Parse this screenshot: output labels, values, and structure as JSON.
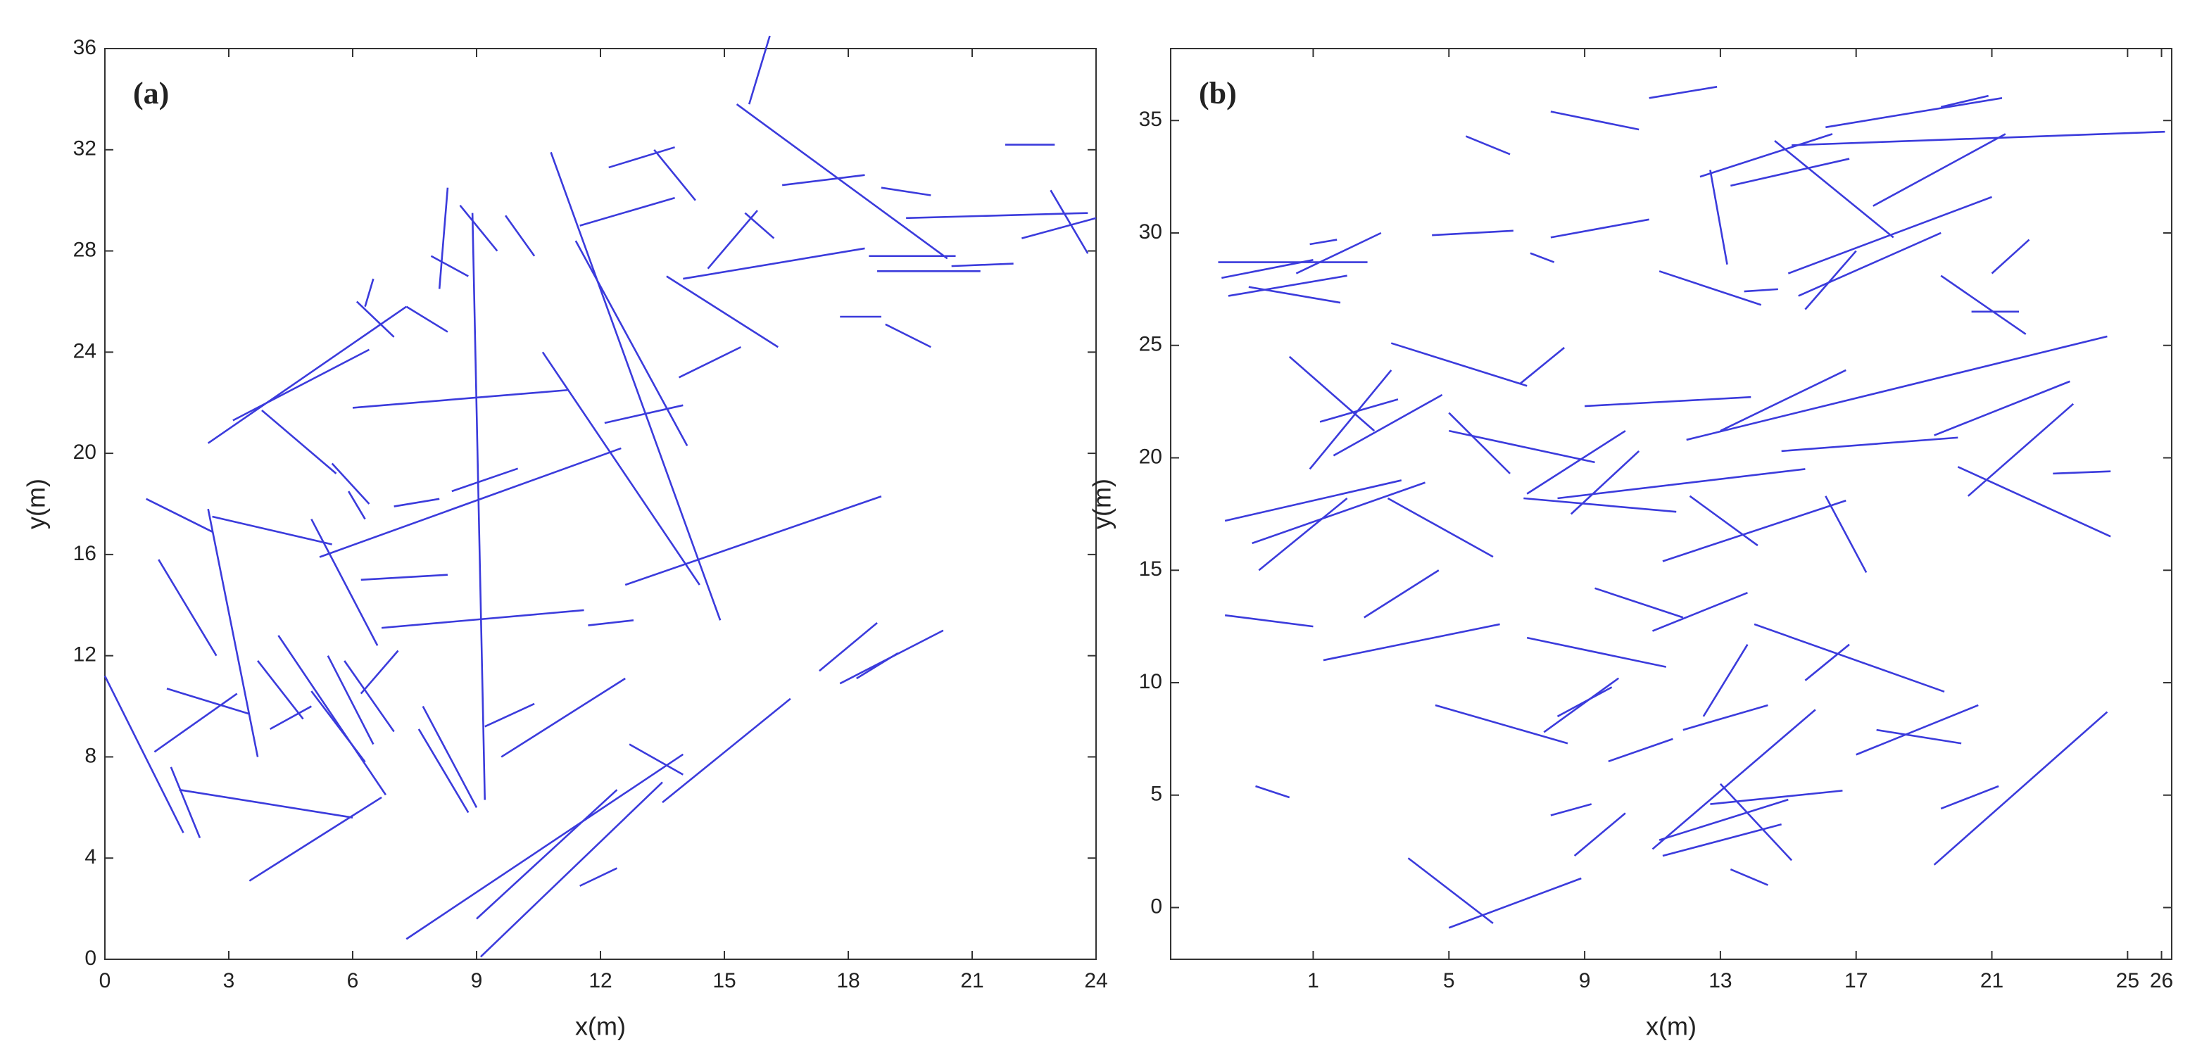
{
  "chart_data": [
    {
      "type": "segments",
      "annotation": "(a)",
      "xlabel": "x(m)",
      "ylabel": "y(m)",
      "color": "#3b3bdc",
      "xlim": [
        0,
        24
      ],
      "ylim": [
        0,
        36
      ],
      "xticks": [
        0,
        3,
        6,
        9,
        12,
        15,
        18,
        21,
        24
      ],
      "yticks": [
        0,
        4,
        8,
        12,
        16,
        20,
        24,
        28,
        32,
        36
      ],
      "segments": [
        [
          0,
          11.2,
          1.9,
          5
        ],
        [
          1,
          18.2,
          2.6,
          16.9
        ],
        [
          2.6,
          17.5,
          5.5,
          16.4
        ],
        [
          2.5,
          17.8,
          3.7,
          8
        ],
        [
          1.3,
          15.8,
          2.7,
          12
        ],
        [
          1.2,
          8.2,
          3.2,
          10.5
        ],
        [
          1.5,
          10.7,
          3.5,
          9.7
        ],
        [
          1.6,
          7.6,
          2.3,
          4.8
        ],
        [
          1.8,
          6.7,
          6,
          5.6
        ],
        [
          3.5,
          3.1,
          6.7,
          6.4
        ],
        [
          5,
          17.4,
          6.6,
          12.4
        ],
        [
          5.2,
          15.9,
          12.5,
          20.2
        ],
        [
          6.7,
          13.1,
          11.6,
          13.8
        ],
        [
          6.2,
          15,
          8.3,
          15.2
        ],
        [
          6,
          21.8,
          11.2,
          22.5
        ],
        [
          2.5,
          20.4,
          7.3,
          25.8
        ],
        [
          7.3,
          25.8,
          8.3,
          24.8
        ],
        [
          3.8,
          21.7,
          5.6,
          19.2
        ],
        [
          3.1,
          21.3,
          6.4,
          24.1
        ],
        [
          8.3,
          30.5,
          8.1,
          26.5
        ],
        [
          8.6,
          29.8,
          9.5,
          28
        ],
        [
          8.9,
          29.5,
          9.2,
          6.3
        ],
        [
          10.8,
          31.9,
          14.9,
          13.4
        ],
        [
          11.4,
          28.4,
          14.1,
          20.3
        ],
        [
          10.6,
          24,
          14.4,
          14.8
        ],
        [
          12.6,
          14.8,
          18.8,
          18.3
        ],
        [
          12.2,
          31.3,
          13.8,
          32.1
        ],
        [
          11.5,
          29,
          13.8,
          30.1
        ],
        [
          13.3,
          32,
          14.3,
          30
        ],
        [
          13.6,
          27,
          16.3,
          24.2
        ],
        [
          14,
          26.9,
          18.4,
          28.1
        ],
        [
          15.3,
          33.8,
          20.4,
          27.7
        ],
        [
          15.6,
          33.8,
          16.1,
          36.5
        ],
        [
          19.4,
          29.3,
          23.8,
          29.5
        ],
        [
          18.8,
          30.5,
          20,
          30.2
        ],
        [
          16.4,
          30.6,
          18.4,
          31
        ],
        [
          15.5,
          29.5,
          16.2,
          28.5
        ],
        [
          14.6,
          27.3,
          15.8,
          29.6
        ],
        [
          18.5,
          27.8,
          20.6,
          27.8
        ],
        [
          18.7,
          27.2,
          21.2,
          27.2
        ],
        [
          20.5,
          27.4,
          22,
          27.5
        ],
        [
          21.8,
          32.2,
          23,
          32.2
        ],
        [
          22.9,
          30.4,
          23.8,
          27.9
        ],
        [
          22.2,
          28.5,
          24,
          29.3
        ],
        [
          17.8,
          25.4,
          18.8,
          25.4
        ],
        [
          18.9,
          25.1,
          20,
          24.2
        ],
        [
          13.9,
          23,
          15.4,
          24.2
        ],
        [
          12.1,
          21.2,
          14,
          21.9
        ],
        [
          7,
          17.9,
          8.1,
          18.2
        ],
        [
          8.4,
          18.5,
          10,
          19.4
        ],
        [
          7.3,
          0.8,
          14,
          8.1
        ],
        [
          9,
          1.6,
          12.4,
          6.7
        ],
        [
          9.1,
          0.1,
          13.5,
          7
        ],
        [
          11.5,
          2.9,
          12.4,
          3.6
        ],
        [
          13.5,
          6.2,
          16.6,
          10.3
        ],
        [
          17.8,
          10.9,
          20.3,
          13
        ],
        [
          17.3,
          11.4,
          18.7,
          13.3
        ],
        [
          18.2,
          11.1,
          19.2,
          12.1
        ],
        [
          9.2,
          9.2,
          10.4,
          10.1
        ],
        [
          9.6,
          8,
          12.6,
          11.1
        ],
        [
          12.7,
          8.5,
          14,
          7.3
        ],
        [
          11.7,
          13.2,
          12.8,
          13.4
        ],
        [
          6.2,
          10.5,
          7.1,
          12.2
        ],
        [
          5,
          10.6,
          6.3,
          7.8
        ],
        [
          5.4,
          12,
          6.5,
          8.5
        ],
        [
          5.8,
          11.8,
          7,
          9
        ],
        [
          4.2,
          12.8,
          6.8,
          6.5
        ],
        [
          3.7,
          11.8,
          4.8,
          9.5
        ],
        [
          4,
          9.1,
          5,
          10
        ],
        [
          7.7,
          10,
          9,
          6
        ],
        [
          7.6,
          9.1,
          8.8,
          5.8
        ],
        [
          5.9,
          18.5,
          6.3,
          17.4
        ],
        [
          5.5,
          19.6,
          6.4,
          18
        ],
        [
          6.1,
          26,
          7,
          24.6
        ],
        [
          6.3,
          25.8,
          6.5,
          26.9
        ],
        [
          7.9,
          27.8,
          8.8,
          27
        ],
        [
          9.7,
          29.4,
          10.4,
          27.8
        ]
      ]
    },
    {
      "type": "segments",
      "annotation": "(b)",
      "xlabel": "x(m)",
      "ylabel": "y(m)",
      "color": "#3b3bdc",
      "xlim": [
        -3.2,
        26.3
      ],
      "ylim": [
        -2.3,
        38.2
      ],
      "xticks": [
        1,
        5,
        9,
        13,
        17,
        21,
        25,
        26
      ],
      "yticks": [
        0,
        5,
        10,
        15,
        20,
        25,
        30,
        35
      ],
      "segments": [
        [
          -1.8,
          28.7,
          2.6,
          28.7
        ],
        [
          -1.7,
          28,
          1,
          28.8
        ],
        [
          -1.5,
          27.2,
          2,
          28.1
        ],
        [
          0.5,
          28.2,
          3,
          30
        ],
        [
          -0.9,
          27.6,
          1.8,
          26.9
        ],
        [
          0.9,
          29.5,
          1.7,
          29.7
        ],
        [
          0.3,
          24.5,
          2.8,
          21.2
        ],
        [
          1.2,
          21.6,
          3.5,
          22.6
        ],
        [
          0.9,
          19.5,
          3.3,
          23.9
        ],
        [
          1.6,
          20.1,
          4.8,
          22.8
        ],
        [
          3.3,
          25.1,
          7.3,
          23.2
        ],
        [
          7.1,
          23.3,
          8.4,
          24.9
        ],
        [
          5,
          22,
          6.8,
          19.3
        ],
        [
          5,
          21.2,
          9.3,
          19.8
        ],
        [
          3.2,
          18.2,
          6.3,
          15.6
        ],
        [
          -1.6,
          17.2,
          3.6,
          19
        ],
        [
          -0.8,
          16.2,
          4.3,
          18.9
        ],
        [
          -0.6,
          15,
          2,
          18.2
        ],
        [
          -1.6,
          13,
          1,
          12.5
        ],
        [
          1.3,
          11,
          6.5,
          12.6
        ],
        [
          2.5,
          12.9,
          4.7,
          15
        ],
        [
          7.3,
          12,
          11.4,
          10.7
        ],
        [
          4.6,
          9,
          8.5,
          7.3
        ],
        [
          7.8,
          7.8,
          10,
          10.2
        ],
        [
          8.2,
          8.5,
          9.8,
          9.8
        ],
        [
          9.7,
          6.5,
          11.6,
          7.5
        ],
        [
          -0.7,
          5.4,
          0.3,
          4.9
        ],
        [
          3.8,
          2.2,
          6.3,
          -0.7
        ],
        [
          5,
          -0.9,
          8.9,
          1.3
        ],
        [
          8,
          4.1,
          9.2,
          4.6
        ],
        [
          8.7,
          2.3,
          10.2,
          4.2
        ],
        [
          11,
          2.6,
          15.8,
          8.8
        ],
        [
          11.3,
          2.3,
          14.8,
          3.7
        ],
        [
          11.2,
          3,
          15,
          4.8
        ],
        [
          13,
          5.5,
          15.1,
          2.1
        ],
        [
          12.7,
          4.6,
          16.6,
          5.2
        ],
        [
          13.3,
          1.7,
          14.4,
          1
        ],
        [
          17.6,
          7.9,
          20.1,
          7.3
        ],
        [
          17,
          6.8,
          20.6,
          9
        ],
        [
          19.5,
          4.4,
          21.2,
          5.4
        ],
        [
          19.3,
          1.9,
          24.4,
          8.7
        ],
        [
          14,
          12.6,
          19.6,
          9.6
        ],
        [
          15.5,
          10.1,
          16.8,
          11.7
        ],
        [
          11,
          12.3,
          13.8,
          14
        ],
        [
          9.3,
          14.2,
          11.9,
          12.9
        ],
        [
          12.5,
          8.5,
          13.8,
          11.7
        ],
        [
          11.9,
          7.9,
          14.4,
          9
        ],
        [
          7.2,
          18.2,
          11.7,
          17.6
        ],
        [
          7.3,
          18.4,
          10.2,
          21.2
        ],
        [
          8.6,
          17.5,
          10.6,
          20.3
        ],
        [
          8.2,
          18.2,
          15.5,
          19.5
        ],
        [
          11.3,
          15.4,
          16.7,
          18.1
        ],
        [
          12.1,
          18.3,
          14.1,
          16.1
        ],
        [
          9,
          22.3,
          13.9,
          22.7
        ],
        [
          12,
          20.8,
          24.4,
          25.4
        ],
        [
          13,
          21.2,
          16.7,
          23.9
        ],
        [
          14.8,
          20.3,
          20,
          20.9
        ],
        [
          16.1,
          18.3,
          17.3,
          14.9
        ],
        [
          20,
          19.6,
          24.5,
          16.5
        ],
        [
          20.3,
          18.3,
          23.4,
          22.4
        ],
        [
          19.3,
          21,
          23.3,
          23.4
        ],
        [
          22.8,
          19.3,
          24.5,
          19.4
        ],
        [
          13.2,
          28.6,
          12.7,
          32.8
        ],
        [
          12.4,
          32.5,
          16.3,
          34.4
        ],
        [
          13.3,
          32.1,
          16.8,
          33.3
        ],
        [
          14.6,
          34.1,
          18.1,
          29.8
        ],
        [
          15.1,
          33.9,
          26.1,
          34.5
        ],
        [
          16.1,
          34.7,
          21.3,
          36
        ],
        [
          17.5,
          31.2,
          21.4,
          34.4
        ],
        [
          15,
          28.2,
          21,
          31.6
        ],
        [
          15.3,
          27.2,
          19.5,
          30
        ],
        [
          15.5,
          26.6,
          17,
          29.2
        ],
        [
          11.2,
          28.3,
          14.2,
          26.8
        ],
        [
          13.7,
          27.4,
          14.7,
          27.5
        ],
        [
          20.4,
          26.5,
          21.8,
          26.5
        ],
        [
          19.5,
          28.1,
          22,
          25.5
        ],
        [
          21,
          28.2,
          22.1,
          29.7
        ],
        [
          8,
          29.8,
          10.9,
          30.6
        ],
        [
          4.5,
          29.9,
          6.9,
          30.1
        ],
        [
          5.5,
          34.3,
          6.8,
          33.5
        ],
        [
          8,
          35.4,
          10.6,
          34.6
        ],
        [
          10.9,
          36,
          12.9,
          36.5
        ],
        [
          19.5,
          35.6,
          20.9,
          36.1
        ],
        [
          7.4,
          29.1,
          8.1,
          28.7
        ]
      ]
    }
  ]
}
